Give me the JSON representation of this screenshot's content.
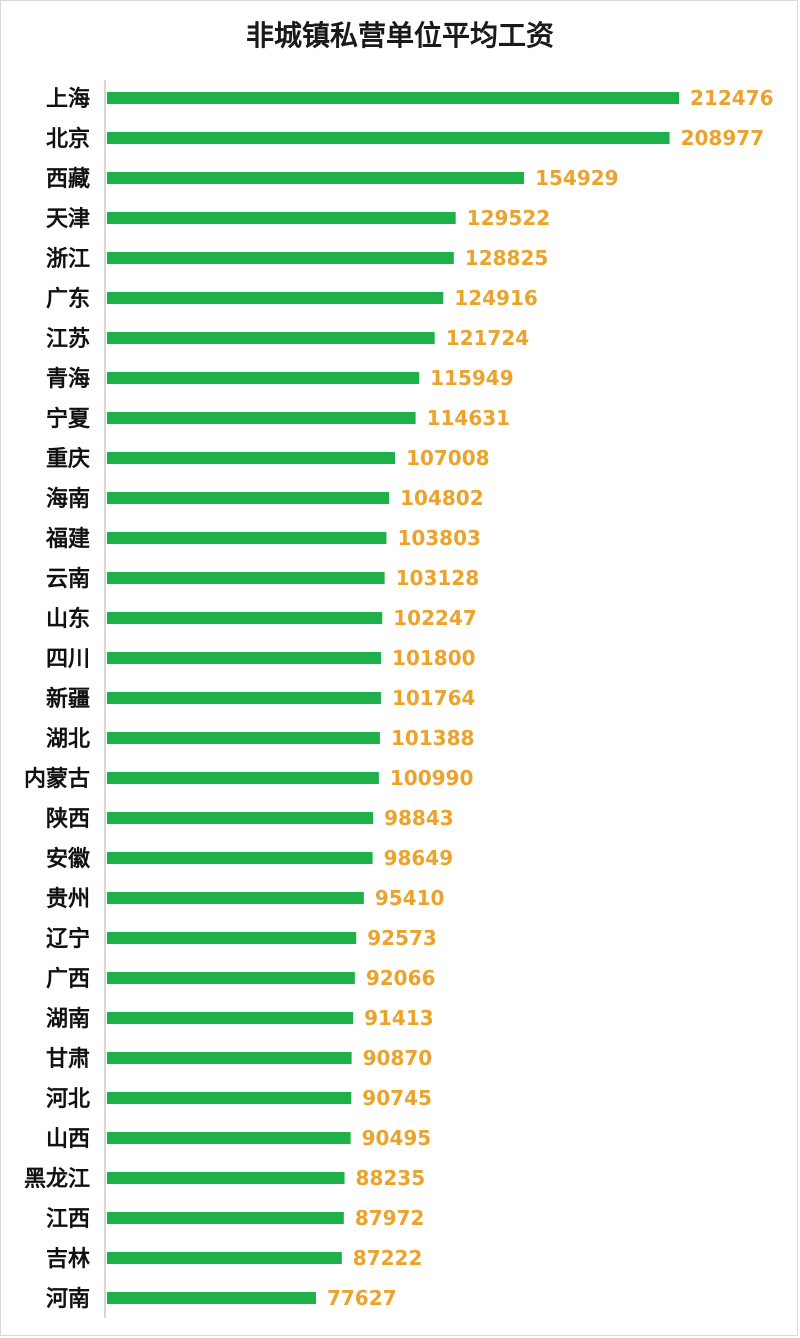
{
  "chart_data": {
    "type": "bar",
    "orientation": "horizontal",
    "title": "非城镇私营单位平均工资",
    "xlabel": "",
    "ylabel": "",
    "grid": false,
    "legend": "none",
    "xlim": [
      0,
      225000
    ],
    "categories": [
      "上海",
      "北京",
      "西藏",
      "天津",
      "浙江",
      "广东",
      "江苏",
      "青海",
      "宁夏",
      "重庆",
      "海南",
      "福建",
      "云南",
      "山东",
      "四川",
      "新疆",
      "湖北",
      "内蒙古",
      "陕西",
      "安徽",
      "贵州",
      "辽宁",
      "广西",
      "湖南",
      "甘肃",
      "河北",
      "山西",
      "黑龙江",
      "江西",
      "吉林",
      "河南"
    ],
    "values": [
      212476,
      208977,
      154929,
      129522,
      128825,
      124916,
      121724,
      115949,
      114631,
      107008,
      104802,
      103803,
      103128,
      102247,
      101800,
      101764,
      101388,
      100990,
      98843,
      98649,
      95410,
      92573,
      92066,
      91413,
      90870,
      90745,
      90495,
      88235,
      87972,
      87222,
      77627
    ],
    "bar_color": "#1fb149",
    "label_color": "#eaa32c",
    "axis_color": "#c8c8c8"
  }
}
